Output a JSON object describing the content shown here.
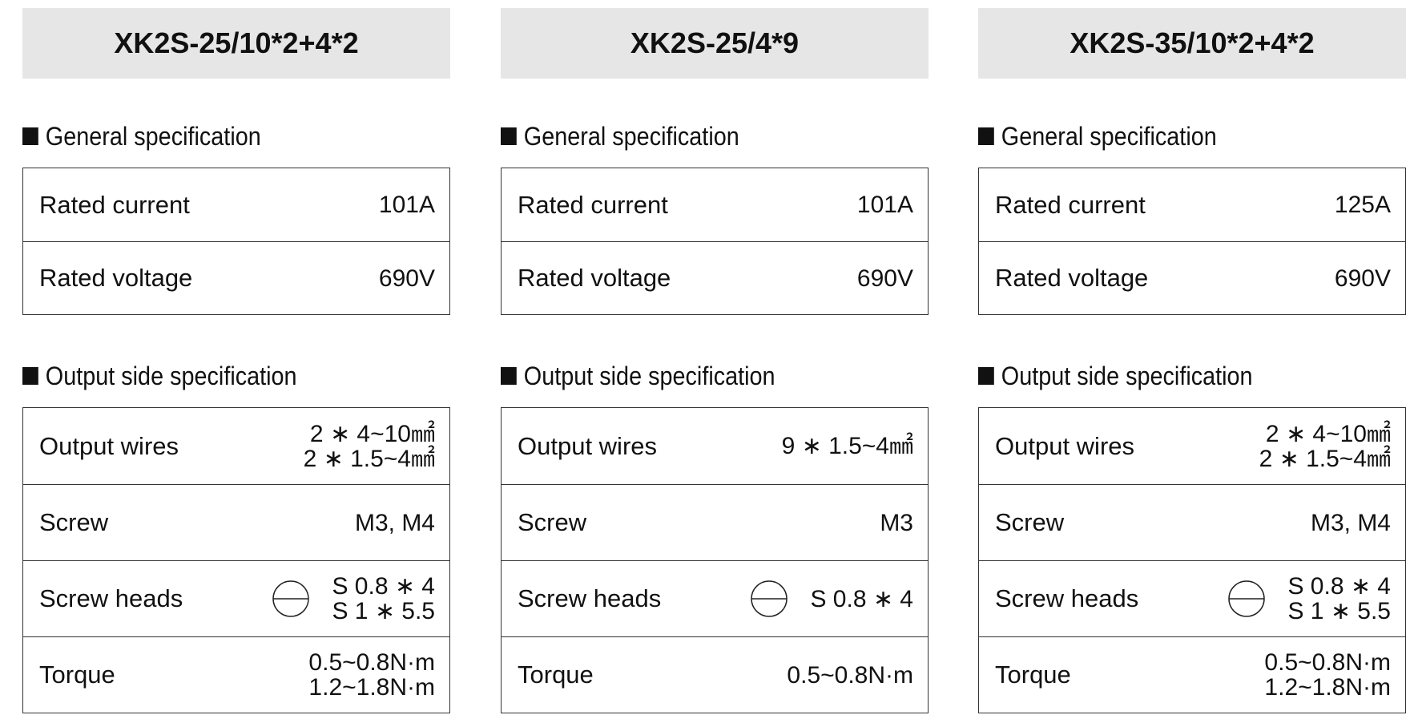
{
  "columns": [
    {
      "title": "XK2S-25/10*2+4*2",
      "general": {
        "heading": "General specification",
        "rows": [
          {
            "label": "Rated current",
            "value": [
              "101A"
            ]
          },
          {
            "label": "Rated voltage",
            "value": [
              "690V"
            ]
          }
        ]
      },
      "output": {
        "heading": "Output side specification",
        "rows": [
          {
            "label": "Output wires",
            "value": [
              "2 ∗ 4~10㎟",
              "2 ∗ 1.5~4㎟"
            ]
          },
          {
            "label": "Screw",
            "value": [
              "M3, M4"
            ]
          },
          {
            "label": "Screw heads",
            "value": [
              "S 0.8 ∗ 4",
              "S 1 ∗ 5.5"
            ]
          },
          {
            "label": "Torque",
            "value": [
              "0.5~0.8N·m",
              "1.2~1.8N·m"
            ]
          }
        ]
      }
    },
    {
      "title": "XK2S-25/4*9",
      "general": {
        "heading": "General specification",
        "rows": [
          {
            "label": "Rated current",
            "value": [
              "101A"
            ]
          },
          {
            "label": "Rated voltage",
            "value": [
              "690V"
            ]
          }
        ]
      },
      "output": {
        "heading": "Output side specification",
        "rows": [
          {
            "label": "Output wires",
            "value": [
              "9 ∗ 1.5~4㎟"
            ]
          },
          {
            "label": "Screw",
            "value": [
              "M3"
            ]
          },
          {
            "label": "Screw heads",
            "value": [
              "S 0.8 ∗ 4"
            ]
          },
          {
            "label": "Torque",
            "value": [
              "0.5~0.8N·m"
            ]
          }
        ]
      }
    },
    {
      "title": "XK2S-35/10*2+4*2",
      "general": {
        "heading": "General specification",
        "rows": [
          {
            "label": "Rated current",
            "value": [
              "125A"
            ]
          },
          {
            "label": "Rated voltage",
            "value": [
              "690V"
            ]
          }
        ]
      },
      "output": {
        "heading": "Output side specification",
        "rows": [
          {
            "label": "Output wires",
            "value": [
              "2 ∗ 4~10㎟",
              "2 ∗ 1.5~4㎟"
            ]
          },
          {
            "label": "Screw",
            "value": [
              "M3, M4"
            ]
          },
          {
            "label": "Screw heads",
            "value": [
              "S 0.8 ∗ 4",
              "S 1 ∗ 5.5"
            ]
          },
          {
            "label": "Torque",
            "value": [
              "0.5~0.8N·m",
              "1.2~1.8N·m"
            ]
          }
        ]
      }
    }
  ]
}
